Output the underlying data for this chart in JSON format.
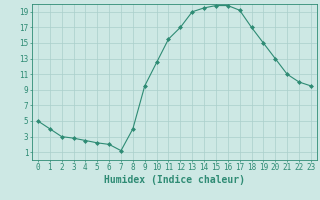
{
  "x": [
    0,
    1,
    2,
    3,
    4,
    5,
    6,
    7,
    8,
    9,
    10,
    11,
    12,
    13,
    14,
    15,
    16,
    17,
    18,
    19,
    20,
    21,
    22,
    23
  ],
  "y": [
    5,
    4,
    3,
    2.8,
    2.5,
    2.2,
    2,
    1.2,
    4,
    9.5,
    12.5,
    15.5,
    17,
    19,
    19.5,
    19.8,
    19.8,
    19.2,
    17,
    15,
    13,
    11,
    10,
    9.5
  ],
  "line_color": "#2e8b74",
  "marker": "D",
  "marker_size": 2.0,
  "bg_color": "#cde8e4",
  "grid_color": "#aacfcb",
  "xlabel": "Humidex (Indice chaleur)",
  "xlim": [
    -0.5,
    23.5
  ],
  "ylim": [
    0,
    20
  ],
  "xticks": [
    0,
    1,
    2,
    3,
    4,
    5,
    6,
    7,
    8,
    9,
    10,
    11,
    12,
    13,
    14,
    15,
    16,
    17,
    18,
    19,
    20,
    21,
    22,
    23
  ],
  "yticks": [
    1,
    3,
    5,
    7,
    9,
    11,
    13,
    15,
    17,
    19
  ],
  "tick_fontsize": 5.5,
  "xlabel_fontsize": 7.0
}
